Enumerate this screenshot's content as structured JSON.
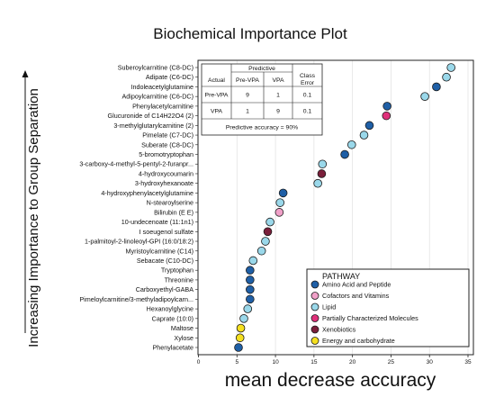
{
  "chart_data": {
    "type": "scatter",
    "title": "Biochemical Importance Plot",
    "xlabel": "mean decrease accuracy",
    "ylabel": "Increasing Importance to Group Separation",
    "xlim": [
      0,
      35
    ],
    "xticks": [
      0,
      5,
      10,
      15,
      20,
      25,
      30,
      35
    ],
    "grid": "vertical gridlines",
    "legend": {
      "title": "PATHWAY",
      "placement": "bottom-right",
      "entries": [
        {
          "name": "Amino Acid and Peptide",
          "color": "#1f5fa6"
        },
        {
          "name": "Cofactors and Vitamins",
          "color": "#f0a0c8"
        },
        {
          "name": "Lipid",
          "color": "#9ad8ea"
        },
        {
          "name": "Partially Characterized Molecules",
          "color": "#e0307a"
        },
        {
          "name": "Xenobiotics",
          "color": "#7a1f3a"
        },
        {
          "name": "Energy and carbohydrate",
          "color": "#f5e020"
        }
      ]
    },
    "points": [
      {
        "label": "Suberoylcarnitine (C8-DC)",
        "x": 32.8,
        "pathway": "Lipid"
      },
      {
        "label": "Adipate (C6-DC)",
        "x": 32.2,
        "pathway": "Lipid"
      },
      {
        "label": "Indoleacetylglutamine",
        "x": 30.9,
        "pathway": "Amino Acid and Peptide"
      },
      {
        "label": "Adipoylcarnitine (C6-DC)",
        "x": 29.4,
        "pathway": "Lipid"
      },
      {
        "label": "Phenylacetylcarnitine",
        "x": 24.5,
        "pathway": "Amino Acid and Peptide"
      },
      {
        "label": "Glucuronide of C14H22O4 (2)",
        "x": 24.4,
        "pathway": "Partially Characterized Molecules"
      },
      {
        "label": "3-methylglutarylcarnitine (2)",
        "x": 22.2,
        "pathway": "Amino Acid and Peptide"
      },
      {
        "label": "Pimelate (C7-DC)",
        "x": 21.5,
        "pathway": "Lipid"
      },
      {
        "label": "Suberate (C8-DC)",
        "x": 19.9,
        "pathway": "Lipid"
      },
      {
        "label": "5-bromotryptophan",
        "x": 19.0,
        "pathway": "Amino Acid and Peptide"
      },
      {
        "label": "3-carboxy-4-methyl-5-pentyl-2-furanpr...",
        "x": 16.1,
        "pathway": "Lipid"
      },
      {
        "label": "4-hydroxycoumarin",
        "x": 16.0,
        "pathway": "Xenobiotics"
      },
      {
        "label": "3-hydroxyhexanoate",
        "x": 15.5,
        "pathway": "Lipid"
      },
      {
        "label": "4-hydroxyphenylacetylglutamine",
        "x": 11.0,
        "pathway": "Amino Acid and Peptide"
      },
      {
        "label": "N-stearoylserine",
        "x": 10.6,
        "pathway": "Lipid"
      },
      {
        "label": "Bilirubin (E E)",
        "x": 10.5,
        "pathway": "Cofactors and Vitamins"
      },
      {
        "label": "10-undecenoate (11:1n1)",
        "x": 9.3,
        "pathway": "Lipid"
      },
      {
        "label": "I soeugenol sulfate",
        "x": 9.0,
        "pathway": "Xenobiotics"
      },
      {
        "label": "1-palmitoyl-2-linoleoyl-GPI (16:0/18:2)",
        "x": 8.7,
        "pathway": "Lipid"
      },
      {
        "label": "Myristoylcarnitine (C14)",
        "x": 8.2,
        "pathway": "Lipid"
      },
      {
        "label": "Sebacate (C10-DC)",
        "x": 7.1,
        "pathway": "Lipid"
      },
      {
        "label": "Tryptophan",
        "x": 6.7,
        "pathway": "Amino Acid and Peptide"
      },
      {
        "label": "Threonine",
        "x": 6.7,
        "pathway": "Amino Acid and Peptide"
      },
      {
        "label": "Carboxyethyl-GABA",
        "x": 6.7,
        "pathway": "Amino Acid and Peptide"
      },
      {
        "label": "Pimeloylcarnitine/3-methyladipoylcarn...",
        "x": 6.7,
        "pathway": "Amino Acid and Peptide"
      },
      {
        "label": "Hexanoylglycine",
        "x": 6.4,
        "pathway": "Lipid"
      },
      {
        "label": "Caprate (10:0)",
        "x": 5.9,
        "pathway": "Lipid"
      },
      {
        "label": "Maltose",
        "x": 5.5,
        "pathway": "Energy and carbohydrate"
      },
      {
        "label": "Xylose",
        "x": 5.4,
        "pathway": "Energy and carbohydrate"
      },
      {
        "label": "Phenylacetate",
        "x": 5.2,
        "pathway": "Amino Acid and Peptide"
      }
    ],
    "confusion_table": {
      "header_top": "Predictive",
      "headers": [
        "Actual",
        "Pre-VPA",
        "VPA",
        "Class Error"
      ],
      "rows": [
        [
          "Pre-VPA",
          "9",
          "1",
          "0.1"
        ],
        [
          "VPA",
          "1",
          "9",
          "0.1"
        ]
      ],
      "footer": "Predictive accuracy = 90%"
    }
  }
}
